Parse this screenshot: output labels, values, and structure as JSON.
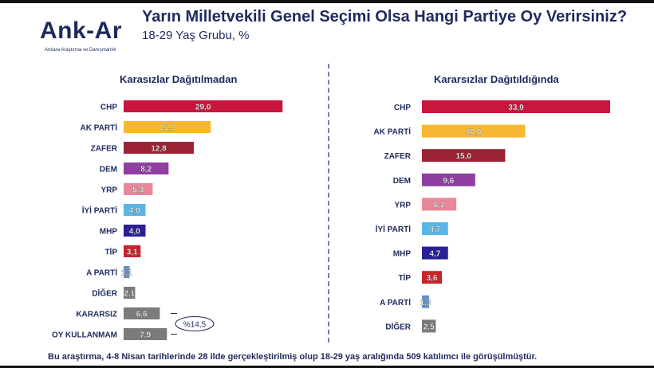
{
  "header": {
    "logo_text": "Ank-Ar",
    "logo_subtitle": "Ankara Araştırma ve Danışmanlık",
    "title": "Yarın Milletvekili Genel Seçimi Olsa Hangi Partiye Oy Verirsiniz?",
    "subtitle": "18-29 Yaş Grubu, %"
  },
  "footnote": "Bu araştırma, 4-8 Nisan tarihlerinde 28 ilde gerçekleştirilmiş olup 18-29 yaş aralığında 509 katılımcı ile görüşülmüştür.",
  "colors": {
    "title_text": "#1e2a5e",
    "CHP": "#c8163f",
    "AK PARTİ": "#f7b733",
    "ZAFER": "#9b2335",
    "DEM": "#8e3fa0",
    "YRP": "#e8879a",
    "İYİ PARTİ": "#5bb6e6",
    "MHP": "#2a2096",
    "TİP": "#c9232d",
    "A PARTİ": "#6c8fc4",
    "DİĞER": "#7b7b7b",
    "KARARSIZ": "#7b7b7b",
    "OY KULLANMAM": "#7b7b7b"
  },
  "chart_data": [
    {
      "type": "bar",
      "orientation": "horizontal",
      "title": "Karasızlar Dağıtılmadan",
      "categories": [
        "CHP",
        "AK PARTİ",
        "ZAFER",
        "DEM",
        "YRP",
        "İYİ PARTİ",
        "MHP",
        "TİP",
        "A PARTİ",
        "DİĞER",
        "KARARSIZ",
        "OY KULLANMAM"
      ],
      "values": [
        29.0,
        15.9,
        12.8,
        8.2,
        5.3,
        4.0,
        4.0,
        3.1,
        1.1,
        2.1,
        6.6,
        7.9
      ],
      "value_labels": [
        "29,0",
        "15,9",
        "12,8",
        "8,2",
        "5,3",
        "4,0",
        "4,0",
        "3,1",
        "1,1",
        "2,1",
        "6,6",
        "7,9"
      ],
      "annotation": "%14,5",
      "xlim": [
        0,
        33.9
      ]
    },
    {
      "type": "bar",
      "orientation": "horizontal",
      "title": "Kararsızlar Dağıtıldığında",
      "categories": [
        "CHP",
        "AK PARTİ",
        "ZAFER",
        "DEM",
        "YRP",
        "İYİ PARTİ",
        "MHP",
        "TİP",
        "A PARTİ",
        "DİĞER"
      ],
      "values": [
        33.9,
        18.6,
        15.0,
        9.6,
        6.2,
        4.7,
        4.7,
        3.6,
        1.3,
        2.5
      ],
      "value_labels": [
        "33,9",
        "18,6",
        "15,0",
        "9,6",
        "6,2",
        "4,7",
        "4,7",
        "3,6",
        "1,3",
        "2,5"
      ],
      "xlim": [
        0,
        33.9
      ]
    }
  ]
}
